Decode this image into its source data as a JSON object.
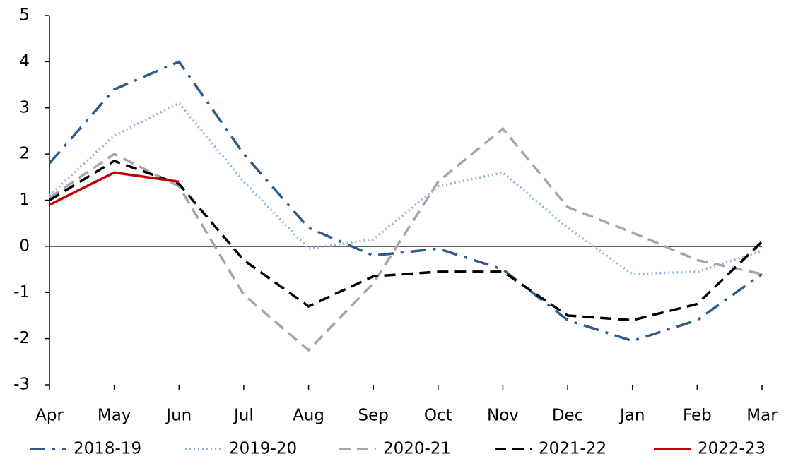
{
  "chart_data": {
    "type": "line",
    "categories": [
      "Apr",
      "May",
      "Jun",
      "Jul",
      "Aug",
      "Sep",
      "Oct",
      "Nov",
      "Dec",
      "Jan",
      "Feb",
      "Mar"
    ],
    "series": [
      {
        "name": "2018-19",
        "color": "#2e5a8c",
        "dash": "22 10 4 10",
        "values": [
          1.8,
          3.4,
          4.0,
          2.0,
          0.4,
          -0.2,
          -0.05,
          -0.5,
          -1.6,
          -2.05,
          -1.6,
          -0.6
        ]
      },
      {
        "name": "2019-20",
        "color": "#8db4e2",
        "dash": "2 4",
        "values": [
          1.1,
          2.4,
          3.1,
          1.4,
          -0.05,
          0.15,
          1.3,
          1.6,
          0.4,
          -0.6,
          -0.55,
          -0.1
        ]
      },
      {
        "name": "2020-21",
        "color": "#a6a6a6",
        "dash": "16 9",
        "values": [
          1.05,
          2.0,
          1.3,
          -1.05,
          -2.25,
          -0.8,
          1.4,
          2.55,
          0.85,
          0.3,
          -0.3,
          -0.6
        ]
      },
      {
        "name": "2021-22",
        "color": "#000000",
        "dash": "16 9",
        "values": [
          1.0,
          1.85,
          1.35,
          -0.3,
          -1.3,
          -0.65,
          -0.55,
          -0.55,
          -1.5,
          -1.6,
          -1.25,
          0.1
        ]
      },
      {
        "name": "2022-23",
        "color": "#c00000",
        "dash": "none",
        "values": [
          0.9,
          1.6,
          1.4,
          null,
          null,
          null,
          null,
          null,
          null,
          null,
          null,
          null
        ]
      }
    ],
    "ylim": [
      -3,
      5
    ],
    "yticks": [
      -3,
      -2,
      -1,
      0,
      1,
      2,
      3,
      4,
      5
    ],
    "legend": "bottom"
  }
}
